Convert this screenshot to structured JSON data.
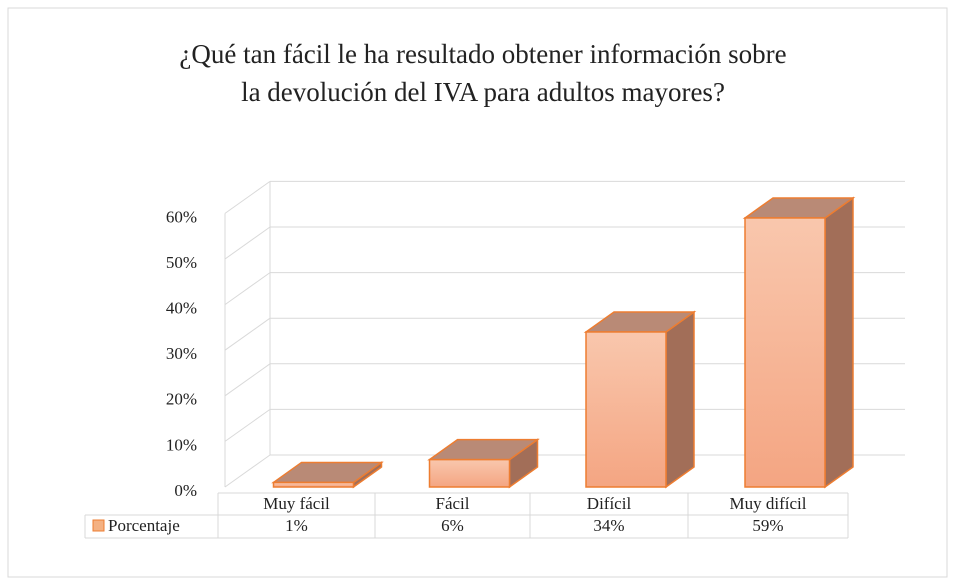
{
  "chart_data": {
    "type": "bar3d",
    "title": [
      "¿Qué tan fácil le ha resultado obtener información sobre",
      "la devolución del IVA para adultos mayores?"
    ],
    "categories": [
      "Muy fácil",
      "Fácil",
      "Difícil",
      "Muy difícil"
    ],
    "series": [
      {
        "name": "Porcentaje",
        "color": "#f4b183",
        "values": [
          1,
          6,
          34,
          59
        ],
        "value_labels": [
          "1%",
          "6%",
          "34%",
          "59%"
        ]
      }
    ],
    "ylim": [
      0,
      60
    ],
    "yticks": [
      {
        "value": 0,
        "label": "0%"
      },
      {
        "value": 10,
        "label": "10%"
      },
      {
        "value": 20,
        "label": "20%"
      },
      {
        "value": 30,
        "label": "30%"
      },
      {
        "value": 40,
        "label": "40%"
      },
      {
        "value": 50,
        "label": "50%"
      },
      {
        "value": 60,
        "label": "60%"
      }
    ],
    "grid": true,
    "legend": "table"
  }
}
